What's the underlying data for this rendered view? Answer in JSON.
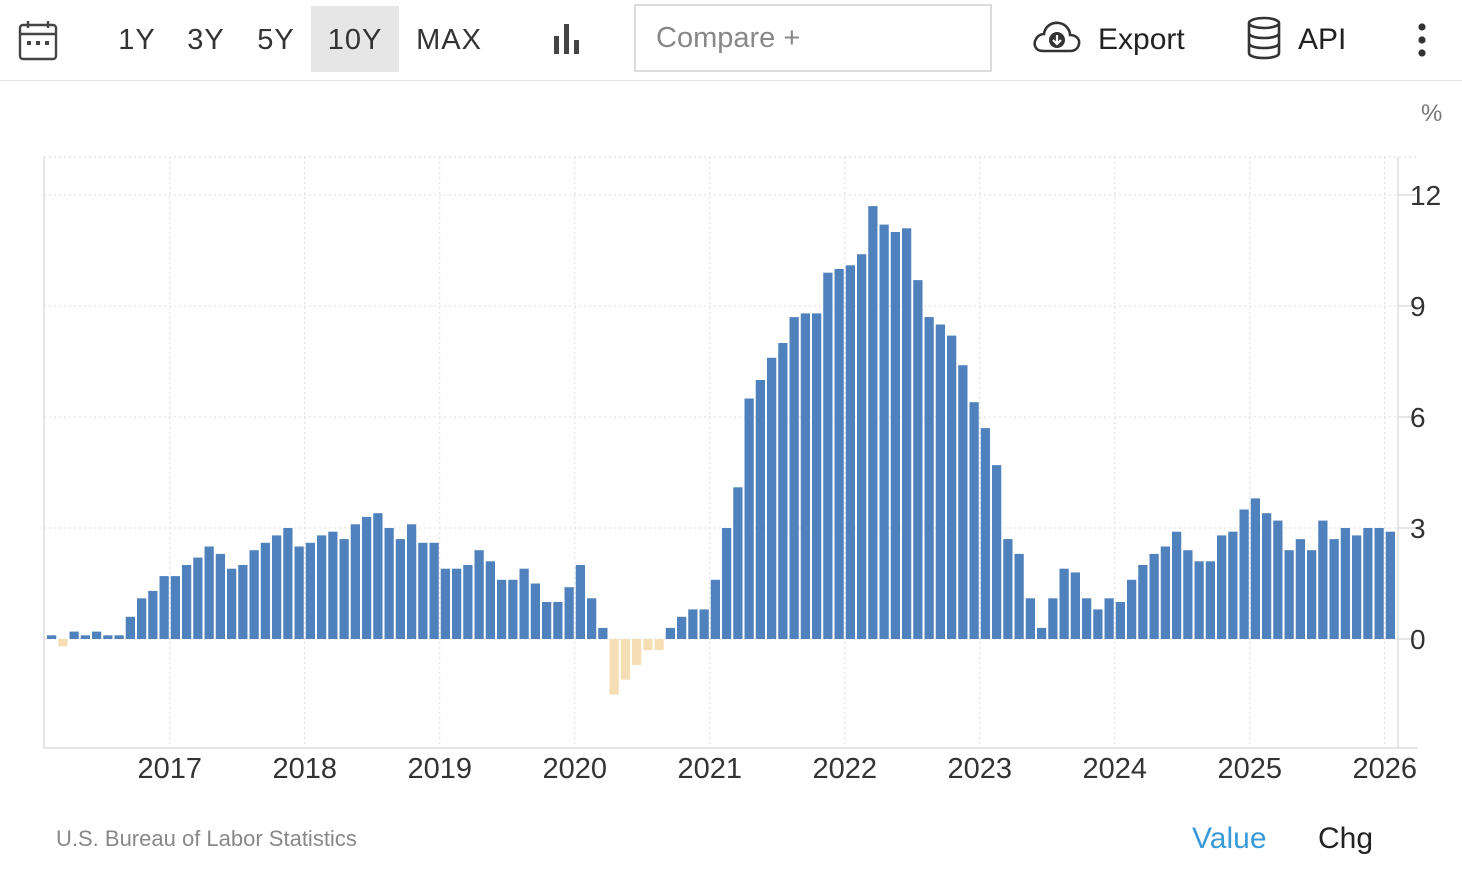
{
  "toolbar": {
    "ranges": [
      "1Y",
      "3Y",
      "5Y",
      "10Y",
      "MAX"
    ],
    "active_range": "10Y",
    "compare_placeholder": "Compare +",
    "export_label": "Export",
    "api_label": "API"
  },
  "chart_data": {
    "type": "bar",
    "unit": "%",
    "ylim": [
      -3.9,
      13
    ],
    "yticks": [
      0,
      3,
      6,
      9,
      12
    ],
    "x_start": "2016-02",
    "x_end": "2026-01",
    "xtick_labels": [
      "2017",
      "2018",
      "2019",
      "2020",
      "2021",
      "2022",
      "2023",
      "2024",
      "2025",
      "2026"
    ],
    "grid": true,
    "colors": {
      "positive": "#4f81bd",
      "negative": "#f5deb3"
    },
    "values": [
      0.1,
      -0.2,
      0.2,
      0.1,
      0.2,
      0.1,
      0.1,
      0.6,
      1.1,
      1.3,
      1.7,
      1.7,
      2.0,
      2.2,
      2.5,
      2.3,
      1.9,
      2.0,
      2.4,
      2.6,
      2.8,
      3.0,
      2.5,
      2.6,
      2.8,
      2.9,
      2.7,
      3.1,
      3.3,
      3.4,
      3.0,
      2.7,
      3.1,
      2.6,
      2.6,
      1.9,
      1.9,
      2.0,
      2.4,
      2.1,
      1.6,
      1.6,
      1.9,
      1.5,
      1.0,
      1.0,
      1.4,
      2.0,
      1.1,
      0.3,
      -1.5,
      -1.1,
      -0.7,
      -0.3,
      -0.3,
      0.3,
      0.6,
      0.8,
      0.8,
      1.6,
      3.0,
      4.1,
      6.5,
      7.0,
      7.6,
      8.0,
      8.7,
      8.8,
      8.8,
      9.9,
      10.0,
      10.1,
      10.4,
      11.7,
      11.2,
      11.0,
      11.1,
      9.7,
      8.7,
      8.5,
      8.2,
      7.4,
      6.4,
      5.7,
      4.7,
      2.7,
      2.3,
      1.1,
      0.3,
      1.1,
      1.9,
      1.8,
      1.1,
      0.8,
      1.1,
      1.0,
      1.6,
      2.0,
      2.3,
      2.5,
      2.9,
      2.4,
      2.1,
      2.1,
      2.8,
      2.9,
      3.5,
      3.8,
      3.4,
      3.2,
      2.4,
      2.7,
      2.4,
      3.2,
      2.7,
      3.0,
      2.8,
      3.0,
      3.0,
      2.9
    ]
  },
  "footer": {
    "source": "U.S. Bureau of Labor Statistics",
    "value_tab": "Value",
    "chg_tab": "Chg"
  }
}
